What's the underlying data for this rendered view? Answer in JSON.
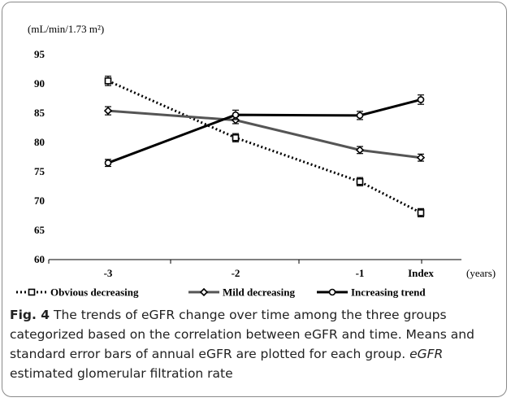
{
  "chart_data": {
    "type": "line",
    "ylabel": "(mL/min/1.73 m²)",
    "xlabel": "(years)",
    "categories": [
      "-3",
      "-2",
      "-1",
      "Index"
    ],
    "ylim": [
      60,
      95
    ],
    "yticks": [
      60,
      65,
      70,
      75,
      80,
      85,
      90,
      95
    ],
    "grid": false,
    "legend_position": "bottom",
    "series": [
      {
        "name": "Obvious decreasing",
        "values": [
          90.5,
          80.8,
          73.3,
          68.0
        ],
        "errors": [
          0.8,
          0.7,
          0.7,
          0.7
        ],
        "style": "dotted",
        "marker": "square",
        "color": "#000000"
      },
      {
        "name": "Mild decreasing",
        "values": [
          85.4,
          83.8,
          78.7,
          77.4
        ],
        "errors": [
          0.7,
          0.6,
          0.6,
          0.6
        ],
        "style": "solid",
        "marker": "diamond",
        "color": "#555555"
      },
      {
        "name": "Increasing trend",
        "values": [
          76.5,
          84.7,
          84.6,
          87.3
        ],
        "errors": [
          0.6,
          0.8,
          0.7,
          0.8
        ],
        "style": "solid",
        "marker": "circle",
        "color": "#000000"
      }
    ]
  },
  "caption": {
    "label": "Fig. 4",
    "text": " The trends of eGFR change over time among the three groups categorized based on the correlation between eGFR and time. Means and standard error bars of annual eGFR are plotted for each group. ",
    "abbr": "eGFR",
    "abbr_def": " estimated glomerular filtration rate"
  }
}
